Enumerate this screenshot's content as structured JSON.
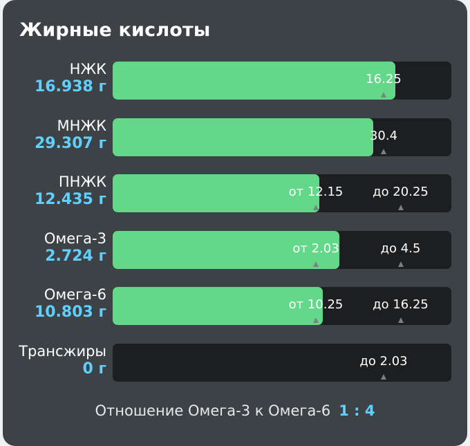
{
  "title": "Жирные кислоты",
  "colors": {
    "fill": "#62d888",
    "track": "#1c1e20",
    "value": "#5fd0ff",
    "card": "#3d4246"
  },
  "rows": [
    {
      "name": "НЖК",
      "value": "16.938 г",
      "fill_fraction": 0.835,
      "markers": [
        {
          "label": "16.25",
          "pos": 0.8
        }
      ]
    },
    {
      "name": "МНЖК",
      "value": "29.307 г",
      "fill_fraction": 0.77,
      "markers": [
        {
          "label": "30.4",
          "pos": 0.8
        }
      ]
    },
    {
      "name": "ПНЖК",
      "value": "12.435 г",
      "fill_fraction": 0.61,
      "markers": [
        {
          "label": "от 12.15",
          "pos": 0.6
        },
        {
          "label": "до 20.25",
          "pos": 0.85
        }
      ]
    },
    {
      "name": "Омега-3",
      "value": "2.724 г",
      "fill_fraction": 0.67,
      "markers": [
        {
          "label": "от 2.03",
          "pos": 0.6
        },
        {
          "label": "до 4.5",
          "pos": 0.85
        }
      ]
    },
    {
      "name": "Омега-6",
      "value": "10.803 г",
      "fill_fraction": 0.62,
      "markers": [
        {
          "label": "от 10.25",
          "pos": 0.6
        },
        {
          "label": "до 16.25",
          "pos": 0.85
        }
      ]
    },
    {
      "name": "Трансжиры",
      "value": "0 г",
      "fill_fraction": 0,
      "markers": [
        {
          "label": "до 2.03",
          "pos": 0.8
        }
      ]
    }
  ],
  "ratio": {
    "label": "Отношение Омега-3 к Омега-6",
    "value": "1 : 4"
  }
}
